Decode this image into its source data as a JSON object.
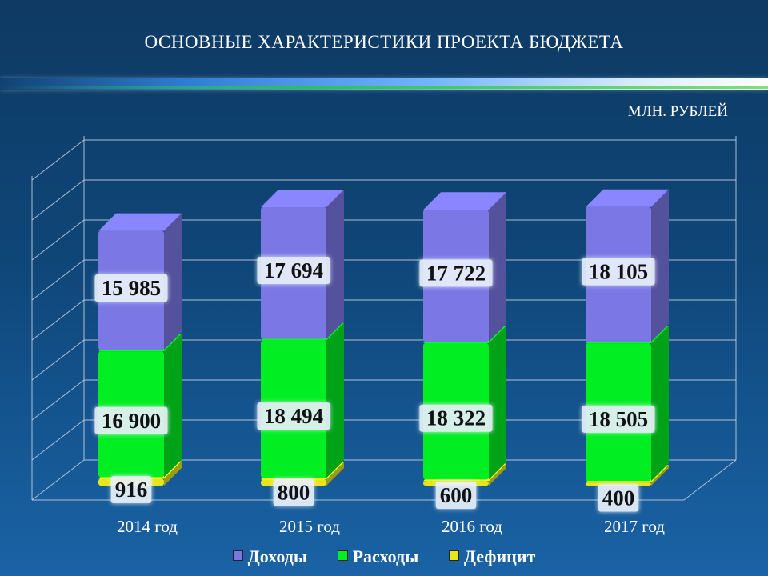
{
  "title": "ОСНОВНЫЕ ХАРАКТЕРИСТИКИ ПРОЕКТА БЮДЖЕТА",
  "units": "МЛН. РУБЛЕЙ",
  "colors": {
    "income": "#7b78e6",
    "expense": "#00ee22",
    "deficit": "#e6e61a"
  },
  "chart_data": {
    "type": "bar",
    "categories": [
      "2014 год",
      "2015 год",
      "2016 год",
      "2017 год"
    ],
    "series": [
      {
        "name": "Доходы",
        "values": [
          15985,
          17694,
          17722,
          18105
        ],
        "labels": [
          "15 985",
          "17 694",
          "17 722",
          "18 105"
        ]
      },
      {
        "name": "Расходы",
        "values": [
          16900,
          18494,
          18322,
          18505
        ],
        "labels": [
          "16 900",
          "18 494",
          "18 322",
          "18 505"
        ]
      },
      {
        "name": "Дефицит",
        "values": [
          916,
          800,
          600,
          400
        ],
        "labels": [
          "916",
          "800",
          "600",
          "400"
        ]
      }
    ],
    "grid": true,
    "legend_position": "bottom"
  },
  "legend": [
    "Доходы",
    "Расходы",
    "Дефицит"
  ]
}
